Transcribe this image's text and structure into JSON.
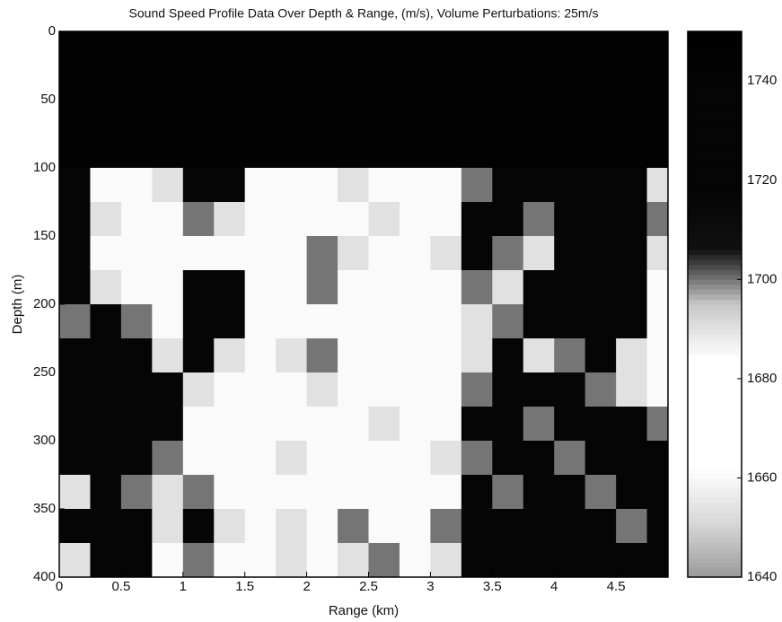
{
  "chart_data": {
    "type": "heatmap",
    "title": "Sound Speed Profile Data Over Depth & Range, (m/s), Volume Perturbations: 25m/s",
    "x_label": "Range (km)",
    "y_label": "Depth (m)",
    "xlim": [
      0,
      4.92
    ],
    "ylim": [
      0,
      400
    ],
    "y_inverted": true,
    "zlim": [
      1640,
      1750
    ],
    "xticks": [
      0,
      0.5,
      1,
      1.5,
      2,
      2.5,
      3,
      3.5,
      4,
      4.5
    ],
    "yticks": [
      0,
      50,
      100,
      150,
      200,
      250,
      300,
      350,
      400
    ],
    "zticks": [
      1640,
      1660,
      1680,
      1700,
      1720,
      1740
    ],
    "colorscale": [
      "#9a9a9a",
      "#d8d8d8",
      "#ffffff",
      "#ffffff",
      "#ffffff",
      "#c8c8c8",
      "#111111",
      "#050505",
      "#050505",
      "#050505",
      "#000000"
    ],
    "x": [
      0.125,
      0.375,
      0.625,
      0.875,
      1.125,
      1.375,
      1.625,
      1.875,
      2.125,
      2.375,
      2.625,
      2.875,
      3.125,
      3.375,
      3.625,
      3.875,
      4.125,
      4.375,
      4.625,
      4.875
    ],
    "y": [
      12.5,
      37.5,
      62.5,
      87.5,
      112.5,
      137.5,
      162.5,
      187.5,
      212.5,
      237.5,
      262.5,
      287.5,
      312.5,
      337.5,
      362.5,
      387.5
    ],
    "z": [
      [
        1745,
        1745,
        1745,
        1745,
        1745,
        1745,
        1745,
        1745,
        1745,
        1745,
        1745,
        1745,
        1745,
        1745,
        1745,
        1745,
        1745,
        1745,
        1745,
        1745
      ],
      [
        1745,
        1745,
        1745,
        1745,
        1745,
        1745,
        1745,
        1745,
        1745,
        1745,
        1745,
        1745,
        1745,
        1745,
        1745,
        1745,
        1745,
        1745,
        1745,
        1745
      ],
      [
        1745,
        1745,
        1745,
        1745,
        1745,
        1745,
        1745,
        1745,
        1745,
        1745,
        1745,
        1745,
        1745,
        1745,
        1745,
        1745,
        1745,
        1745,
        1745,
        1745
      ],
      [
        1745,
        1745,
        1745,
        1745,
        1745,
        1745,
        1745,
        1745,
        1745,
        1745,
        1745,
        1745,
        1745,
        1745,
        1745,
        1745,
        1745,
        1745,
        1745,
        1745
      ],
      [
        1730,
        1685,
        1685,
        1690,
        1725,
        1730,
        1685,
        1685,
        1685,
        1690,
        1685,
        1685,
        1685,
        1700,
        1730,
        1720,
        1730,
        1725,
        1735,
        1690
      ],
      [
        1730,
        1690,
        1685,
        1685,
        1700,
        1690,
        1685,
        1685,
        1685,
        1685,
        1690,
        1685,
        1685,
        1720,
        1730,
        1700,
        1730,
        1740,
        1735,
        1700
      ],
      [
        1730,
        1685,
        1685,
        1685,
        1685,
        1685,
        1685,
        1685,
        1700,
        1690,
        1685,
        1685,
        1690,
        1720,
        1700,
        1690,
        1735,
        1740,
        1740,
        1690
      ],
      [
        1730,
        1690,
        1685,
        1685,
        1720,
        1725,
        1685,
        1685,
        1700,
        1685,
        1685,
        1685,
        1685,
        1700,
        1690,
        1730,
        1740,
        1740,
        1735,
        1685
      ],
      [
        1700,
        1725,
        1700,
        1685,
        1730,
        1720,
        1685,
        1685,
        1685,
        1685,
        1685,
        1685,
        1685,
        1690,
        1700,
        1730,
        1740,
        1740,
        1720,
        1685
      ],
      [
        1735,
        1730,
        1720,
        1690,
        1725,
        1690,
        1685,
        1690,
        1700,
        1685,
        1685,
        1685,
        1685,
        1690,
        1725,
        1690,
        1700,
        1720,
        1690,
        1685
      ],
      [
        1740,
        1740,
        1730,
        1725,
        1690,
        1685,
        1685,
        1685,
        1690,
        1685,
        1685,
        1685,
        1685,
        1700,
        1730,
        1725,
        1730,
        1700,
        1690,
        1685
      ],
      [
        1740,
        1740,
        1735,
        1720,
        1685,
        1685,
        1685,
        1685,
        1685,
        1685,
        1690,
        1685,
        1685,
        1720,
        1730,
        1700,
        1725,
        1730,
        1720,
        1700
      ],
      [
        1740,
        1735,
        1720,
        1700,
        1685,
        1685,
        1685,
        1690,
        1685,
        1685,
        1685,
        1685,
        1690,
        1700,
        1725,
        1730,
        1700,
        1730,
        1730,
        1720
      ],
      [
        1690,
        1720,
        1700,
        1690,
        1700,
        1685,
        1685,
        1685,
        1685,
        1685,
        1685,
        1685,
        1685,
        1725,
        1700,
        1730,
        1725,
        1700,
        1730,
        1730
      ],
      [
        1720,
        1730,
        1725,
        1690,
        1720,
        1690,
        1685,
        1690,
        1685,
        1700,
        1685,
        1685,
        1700,
        1730,
        1735,
        1730,
        1720,
        1730,
        1700,
        1725
      ],
      [
        1690,
        1730,
        1720,
        1685,
        1700,
        1685,
        1685,
        1690,
        1685,
        1690,
        1700,
        1685,
        1690,
        1730,
        1735,
        1740,
        1725,
        1730,
        1720,
        1725
      ]
    ]
  }
}
